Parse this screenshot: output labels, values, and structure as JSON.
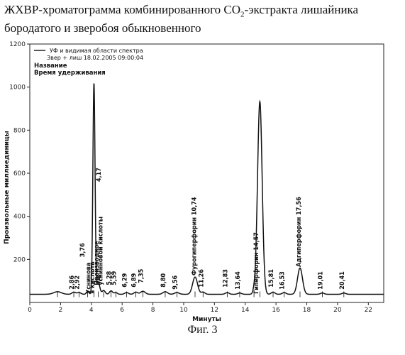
{
  "title": {
    "before": "ЖХВР-хроматограмма комбинированного СО",
    "sub": "2",
    "after": "-экстракта лишайника бородатого и зверобоя обыкновенного"
  },
  "figure_caption": "Фиг. 3",
  "chart_data": {
    "type": "line",
    "xlabel": "Минуты",
    "ylabel": "Произвольные миллиединицы",
    "xlim": [
      0,
      23
    ],
    "ylim": [
      0,
      1200
    ],
    "x_ticks": [
      0,
      2,
      4,
      6,
      8,
      10,
      12,
      14,
      16,
      18,
      20,
      22
    ],
    "y_ticks": [
      200,
      400,
      600,
      800,
      1000,
      1200
    ],
    "grid": false,
    "legend": {
      "line1": "УФ и видимая области спектра",
      "line2": "Звер + лиш 18.02.2005 09:00:04",
      "line3": "Название",
      "line4": "Время удерживания"
    },
    "series": [
      {
        "baseline": 38,
        "peaks": [
          {
            "t": 1.8,
            "h": 12,
            "w": 0.25
          },
          {
            "t": 2.86,
            "h": 10,
            "w": 0.12
          },
          {
            "t": 3.2,
            "h": 8,
            "w": 0.12
          },
          {
            "t": 3.76,
            "h": 14,
            "w": 0.08
          },
          {
            "t": 4.17,
            "h": 980,
            "w": 0.07
          },
          {
            "t": 4.45,
            "h": 55,
            "w": 0.1
          },
          {
            "t": 4.8,
            "h": 18,
            "w": 0.1
          },
          {
            "t": 5.28,
            "h": 16,
            "w": 0.1
          },
          {
            "t": 5.59,
            "h": 8,
            "w": 0.1
          },
          {
            "t": 6.29,
            "h": 8,
            "w": 0.12
          },
          {
            "t": 6.89,
            "h": 10,
            "w": 0.12
          },
          {
            "t": 7.35,
            "h": 14,
            "w": 0.15
          },
          {
            "t": 8.8,
            "h": 12,
            "w": 0.15
          },
          {
            "t": 9.56,
            "h": 8,
            "w": 0.15
          },
          {
            "t": 10.74,
            "h": 80,
            "w": 0.16
          },
          {
            "t": 11.26,
            "h": 10,
            "w": 0.12
          },
          {
            "t": 12.83,
            "h": 8,
            "w": 0.12
          },
          {
            "t": 13.64,
            "h": 6,
            "w": 0.12
          },
          {
            "t": 14.57,
            "h": 14,
            "w": 0.08
          },
          {
            "t": 14.95,
            "h": 895,
            "w": 0.15
          },
          {
            "t": 15.81,
            "h": 10,
            "w": 0.12
          },
          {
            "t": 16.53,
            "h": 8,
            "w": 0.12
          },
          {
            "t": 17.56,
            "h": 122,
            "w": 0.16
          },
          {
            "t": 19.01,
            "h": 6,
            "w": 0.12
          },
          {
            "t": 20.41,
            "h": 6,
            "w": 0.12
          }
        ]
      }
    ],
    "annotations": [
      {
        "t": 2.86,
        "text": "2,86",
        "y": 60
      },
      {
        "t": 3.2,
        "text": "2,92",
        "y": 60
      },
      {
        "t": 3.55,
        "text": "3,76",
        "y": 210
      },
      {
        "t": 4.6,
        "text": "4,17",
        "y": 560
      },
      {
        "t": 4.62,
        "text": "4,8",
        "y": 80
      },
      {
        "t": 5.28,
        "text": "5,28",
        "y": 80
      },
      {
        "t": 5.59,
        "text": "5,59",
        "y": 80
      },
      {
        "t": 6.29,
        "text": "6,29",
        "y": 70
      },
      {
        "t": 6.89,
        "text": "6,89",
        "y": 70
      },
      {
        "t": 7.35,
        "text": "7,35",
        "y": 90
      },
      {
        "t": 8.8,
        "text": "8,80",
        "y": 70
      },
      {
        "t": 9.56,
        "text": "9,56",
        "y": 60
      },
      {
        "t": 11.26,
        "text": "11,26",
        "y": 70
      },
      {
        "t": 12.83,
        "text": "12,83",
        "y": 70
      },
      {
        "t": 13.64,
        "text": "13,64",
        "y": 60
      },
      {
        "t": 15.81,
        "text": "15,81",
        "y": 70
      },
      {
        "t": 16.53,
        "text": "16,53",
        "y": 60
      },
      {
        "t": 19.01,
        "text": "19,01",
        "y": 60
      },
      {
        "t": 20.41,
        "text": "20,41",
        "y": 60
      },
      {
        "t": 10.8,
        "text": "Фурогиперфорин 10,74",
        "y": 125
      },
      {
        "t": 14.85,
        "text": "Гиперфорин 14,57",
        "y": 40
      },
      {
        "t": 17.6,
        "text": "Адгиперфорин 17,56",
        "y": 165
      },
      {
        "t": 3.95,
        "text": "Уснинова",
        "y": 40
      },
      {
        "t": 4.2,
        "text": "я кислота",
        "y": 40
      },
      {
        "t": 4.48,
        "text": "Производное",
        "y": 80
      },
      {
        "t": 4.73,
        "text": "уснинновой кислоты",
        "y": 80
      }
    ]
  }
}
